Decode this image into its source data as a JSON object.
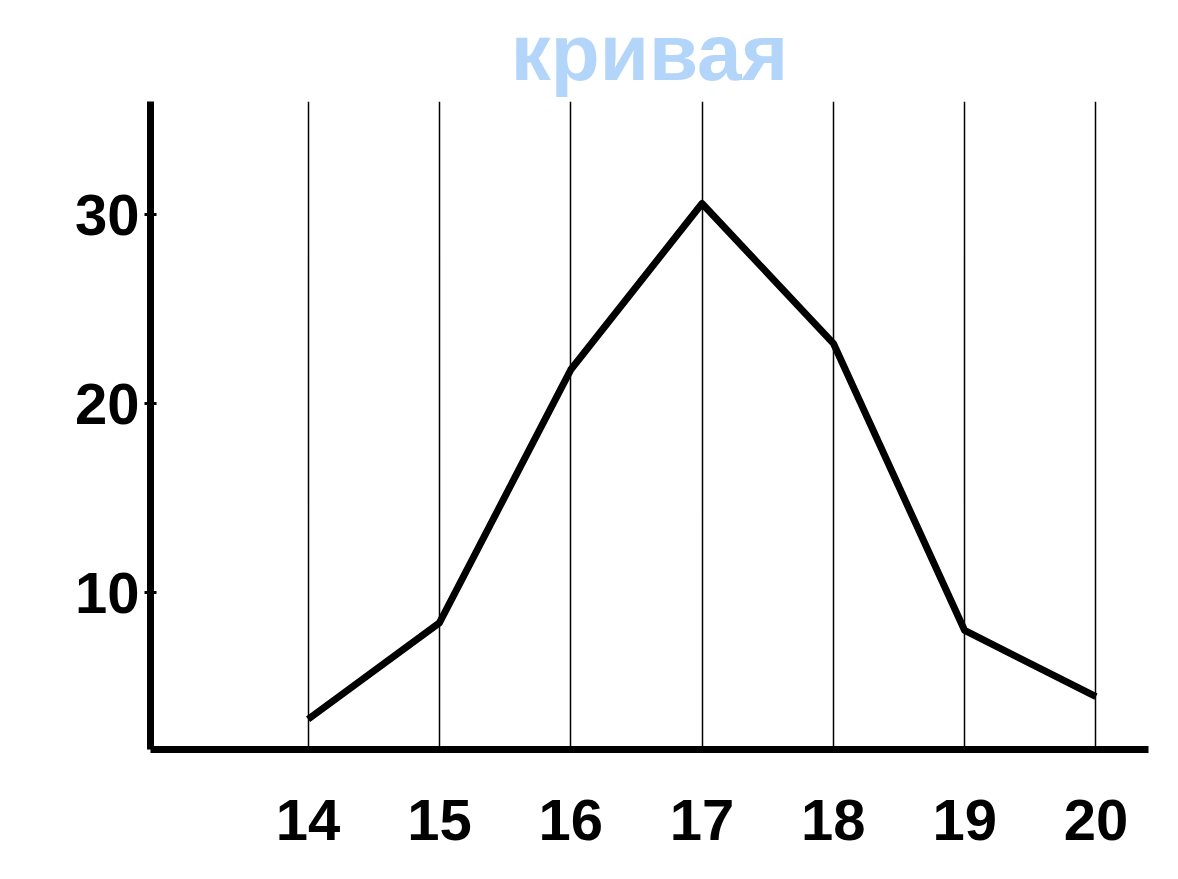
{
  "chart_data": {
    "type": "line",
    "title": "кривая",
    "x": [
      14,
      15,
      16,
      17,
      18,
      19,
      20
    ],
    "series": [
      {
        "color": "#000000",
        "values": [
          3.3,
          8.4,
          21.8,
          30.6,
          23.2,
          8.0,
          4.5
        ]
      }
    ],
    "xlim": [
      12.8,
      20.4
    ],
    "ylim": [
      1.7,
      36
    ],
    "xticks": [
      14,
      15,
      16,
      17,
      18,
      19,
      20
    ],
    "yticks": [
      10,
      20,
      30
    ],
    "grid": "x",
    "marker": "none",
    "line_style": "solid"
  }
}
